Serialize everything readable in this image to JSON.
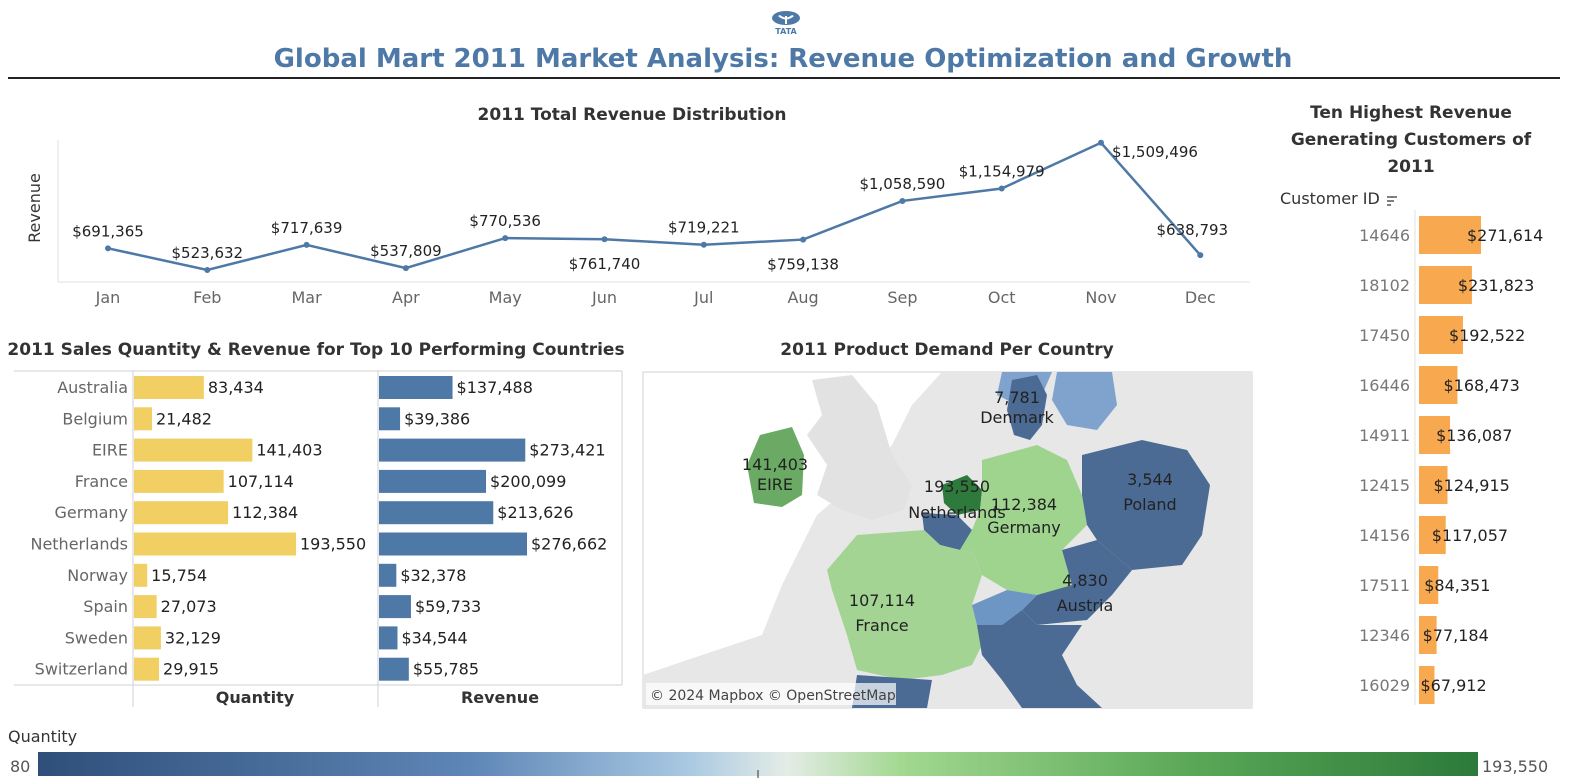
{
  "header": {
    "logo_text": "TATA",
    "title": "Global Mart 2011 Market Analysis: Revenue Optimization and Growth"
  },
  "colors": {
    "title_blue": "#4e79a7",
    "line_blue": "#4e79a7",
    "quantity_bar": "#f1cf63",
    "revenue_bar": "#4e79a7",
    "customer_bar": "#f8a84f",
    "map_low": "#4b6b94",
    "map_high": "#2e7a3c"
  },
  "chart_data": [
    {
      "type": "line",
      "title": "2011 Total Revenue Distribution",
      "ylabel": "Revenue",
      "xlabel": "",
      "categories": [
        "Jan",
        "Feb",
        "Mar",
        "Apr",
        "May",
        "Jun",
        "Jul",
        "Aug",
        "Sep",
        "Oct",
        "Nov",
        "Dec"
      ],
      "values": [
        691365,
        523632,
        717639,
        537809,
        770536,
        761740,
        719221,
        759138,
        1058590,
        1154979,
        1509496,
        638793
      ],
      "labels": [
        "$691,365",
        "$523,632",
        "$717,639",
        "$537,809",
        "$770,536",
        "$761,740",
        "$719,221",
        "$759,138",
        "$1,058,590",
        "$1,154,979",
        "$1,509,496",
        "$638,793"
      ]
    },
    {
      "type": "bar",
      "title": "2011 Sales Quantity & Revenue for Top 10 Performing Countries",
      "categories": [
        "Australia",
        "Belgium",
        "EIRE",
        "France",
        "Germany",
        "Netherlands",
        "Norway",
        "Spain",
        "Sweden",
        "Switzerland"
      ],
      "series": [
        {
          "name": "Quantity",
          "values": [
            83434,
            21482,
            141403,
            107114,
            112384,
            193550,
            15754,
            27073,
            32129,
            29915
          ],
          "labels": [
            "83,434",
            "21,482",
            "141,403",
            "107,114",
            "112,384",
            "193,550",
            "15,754",
            "27,073",
            "32,129",
            "29,915"
          ]
        },
        {
          "name": "Revenue",
          "values": [
            137488,
            39386,
            273421,
            200099,
            213626,
            276662,
            32378,
            59733,
            34544,
            55785
          ],
          "labels": [
            "$137,488",
            "$39,386",
            "$273,421",
            "$200,099",
            "$213,626",
            "$276,662",
            "$32,378",
            "$59,733",
            "$34,544",
            "$55,785"
          ]
        }
      ]
    },
    {
      "type": "bar",
      "title": "Ten Highest Revenue Generating Customers of 2011",
      "axis_header": "Customer ID",
      "categories": [
        "14646",
        "18102",
        "17450",
        "16446",
        "14911",
        "12415",
        "14156",
        "17511",
        "12346",
        "16029"
      ],
      "values": [
        271614,
        231823,
        192522,
        168473,
        136087,
        124915,
        117057,
        84351,
        77184,
        67912
      ],
      "labels": [
        "$271,614",
        "$231,823",
        "$192,522",
        "$168,473",
        "$136,087",
        "$124,915",
        "$117,057",
        "$84,351",
        "$77,184",
        "$67,912"
      ]
    }
  ],
  "map": {
    "title": "2011 Product Demand Per Country",
    "attribution": "© 2024 Mapbox © OpenStreetMap",
    "labels": [
      {
        "name": "Denmark",
        "value": "7,781"
      },
      {
        "name": "EIRE",
        "value": "141,403"
      },
      {
        "name": "Netherlands",
        "value": "193,550"
      },
      {
        "name": "Germany",
        "value": "112,384"
      },
      {
        "name": "Poland",
        "value": "3,544"
      },
      {
        "name": "France",
        "value": "107,114"
      },
      {
        "name": "Austria",
        "value": "4,830"
      }
    ]
  },
  "legend": {
    "title": "Quantity",
    "min_label": "80",
    "max_label": "193,550"
  }
}
